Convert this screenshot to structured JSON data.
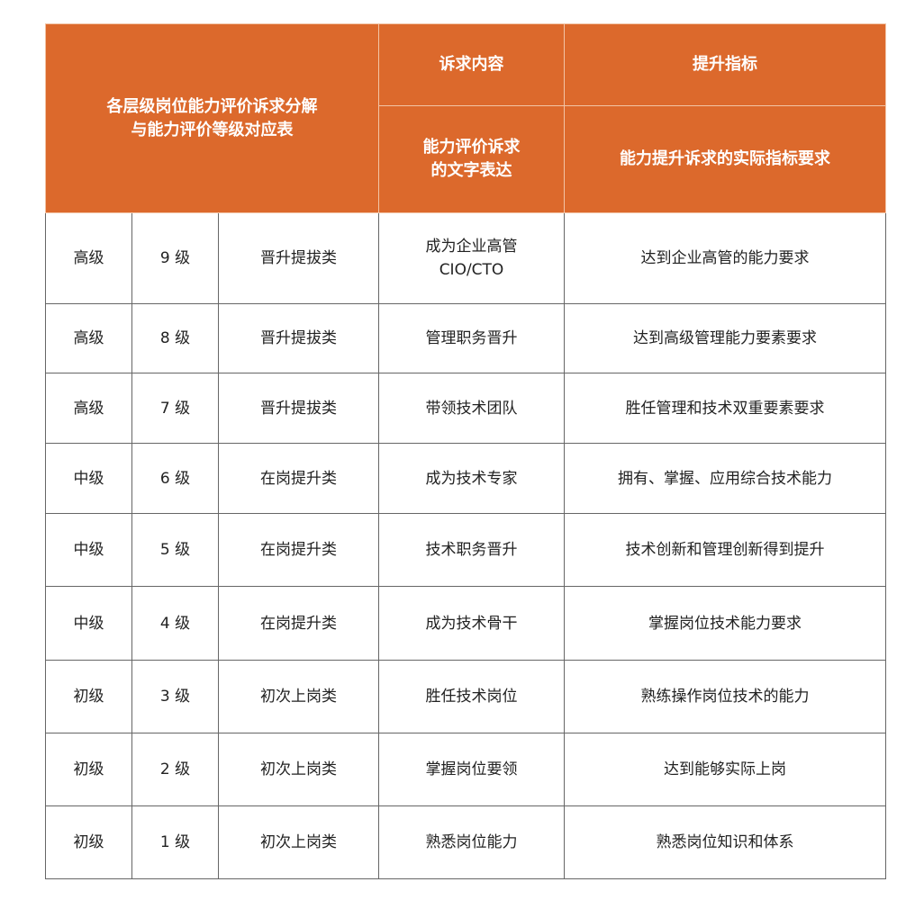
{
  "header": {
    "title_line1": "各层级岗位能力评价诉求分解",
    "title_line2": "与能力评价等级对应表",
    "col_demand": "诉求内容",
    "col_improve": "提升指标",
    "sub_demand_line1": "能力评价诉求",
    "sub_demand_line2": "的文字表达",
    "sub_improve": "能力提升诉求的实际指标要求"
  },
  "header_color": "#DC692C",
  "rows": [
    {
      "tier": "高级",
      "grade": "9 级",
      "category": "晋升提拔类",
      "demand": "成为企业高管",
      "demand2": "CIO/CTO",
      "indicator": "达到企业高管的能力要求"
    },
    {
      "tier": "高级",
      "grade": "8 级",
      "category": "晋升提拔类",
      "demand": "管理职务晋升",
      "demand2": "",
      "indicator": "达到高级管理能力要素要求"
    },
    {
      "tier": "高级",
      "grade": "7 级",
      "category": "晋升提拔类",
      "demand": "带领技术团队",
      "demand2": "",
      "indicator": "胜任管理和技术双重要素要求"
    },
    {
      "tier": "中级",
      "grade": "6 级",
      "category": "在岗提升类",
      "demand": "成为技术专家",
      "demand2": "",
      "indicator": "拥有、掌握、应用综合技术能力"
    },
    {
      "tier": "中级",
      "grade": "5 级",
      "category": "在岗提升类",
      "demand": "技术职务晋升",
      "demand2": "",
      "indicator": "技术创新和管理创新得到提升"
    },
    {
      "tier": "中级",
      "grade": "4 级",
      "category": "在岗提升类",
      "demand": "成为技术骨干",
      "demand2": "",
      "indicator": "掌握岗位技术能力要求"
    },
    {
      "tier": "初级",
      "grade": "3 级",
      "category": "初次上岗类",
      "demand": "胜任技术岗位",
      "demand2": "",
      "indicator": "熟练操作岗位技术的能力"
    },
    {
      "tier": "初级",
      "grade": "2 级",
      "category": "初次上岗类",
      "demand": "掌握岗位要领",
      "demand2": "",
      "indicator": "达到能够实际上岗"
    },
    {
      "tier": "初级",
      "grade": "1 级",
      "category": "初次上岗类",
      "demand": "熟悉岗位能力",
      "demand2": "",
      "indicator": "熟悉岗位知识和体系"
    }
  ]
}
